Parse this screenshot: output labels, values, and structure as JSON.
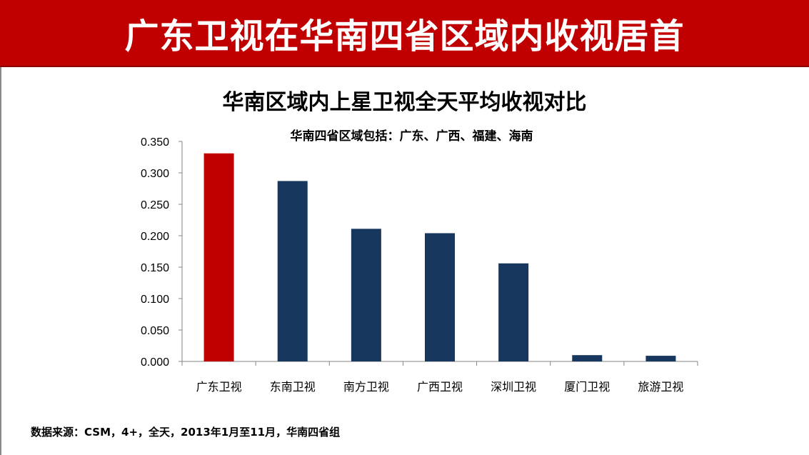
{
  "banner": {
    "title": "广东卫视在华南四省区域内收视居首",
    "bg_color": "#c00000"
  },
  "footnote": "数据来源：CSM，4+，全天，2013年1月至11月，华南四省组",
  "chart_data": {
    "type": "bar",
    "title": "华南区域内上星卫视全天平均收视对比",
    "subtitle": "华南四省区域包括：广东、广西、福建、海南",
    "xlabel": "",
    "ylabel": "",
    "categories": [
      "广东卫视",
      "东南卫视",
      "南方卫视",
      "广西卫视",
      "深圳卫视",
      "厦门卫视",
      "旅游卫视"
    ],
    "values": [
      0.331,
      0.287,
      0.211,
      0.204,
      0.156,
      0.01,
      0.009
    ],
    "ylim": [
      0,
      0.35
    ],
    "yticks": [
      "0.000",
      "0.050",
      "0.100",
      "0.150",
      "0.200",
      "0.250",
      "0.300",
      "0.350"
    ],
    "grid": false,
    "legend": "none",
    "colors": {
      "highlight": "#c00000",
      "default": "#17375e",
      "axis": "#868686"
    },
    "highlight_index": 0
  }
}
